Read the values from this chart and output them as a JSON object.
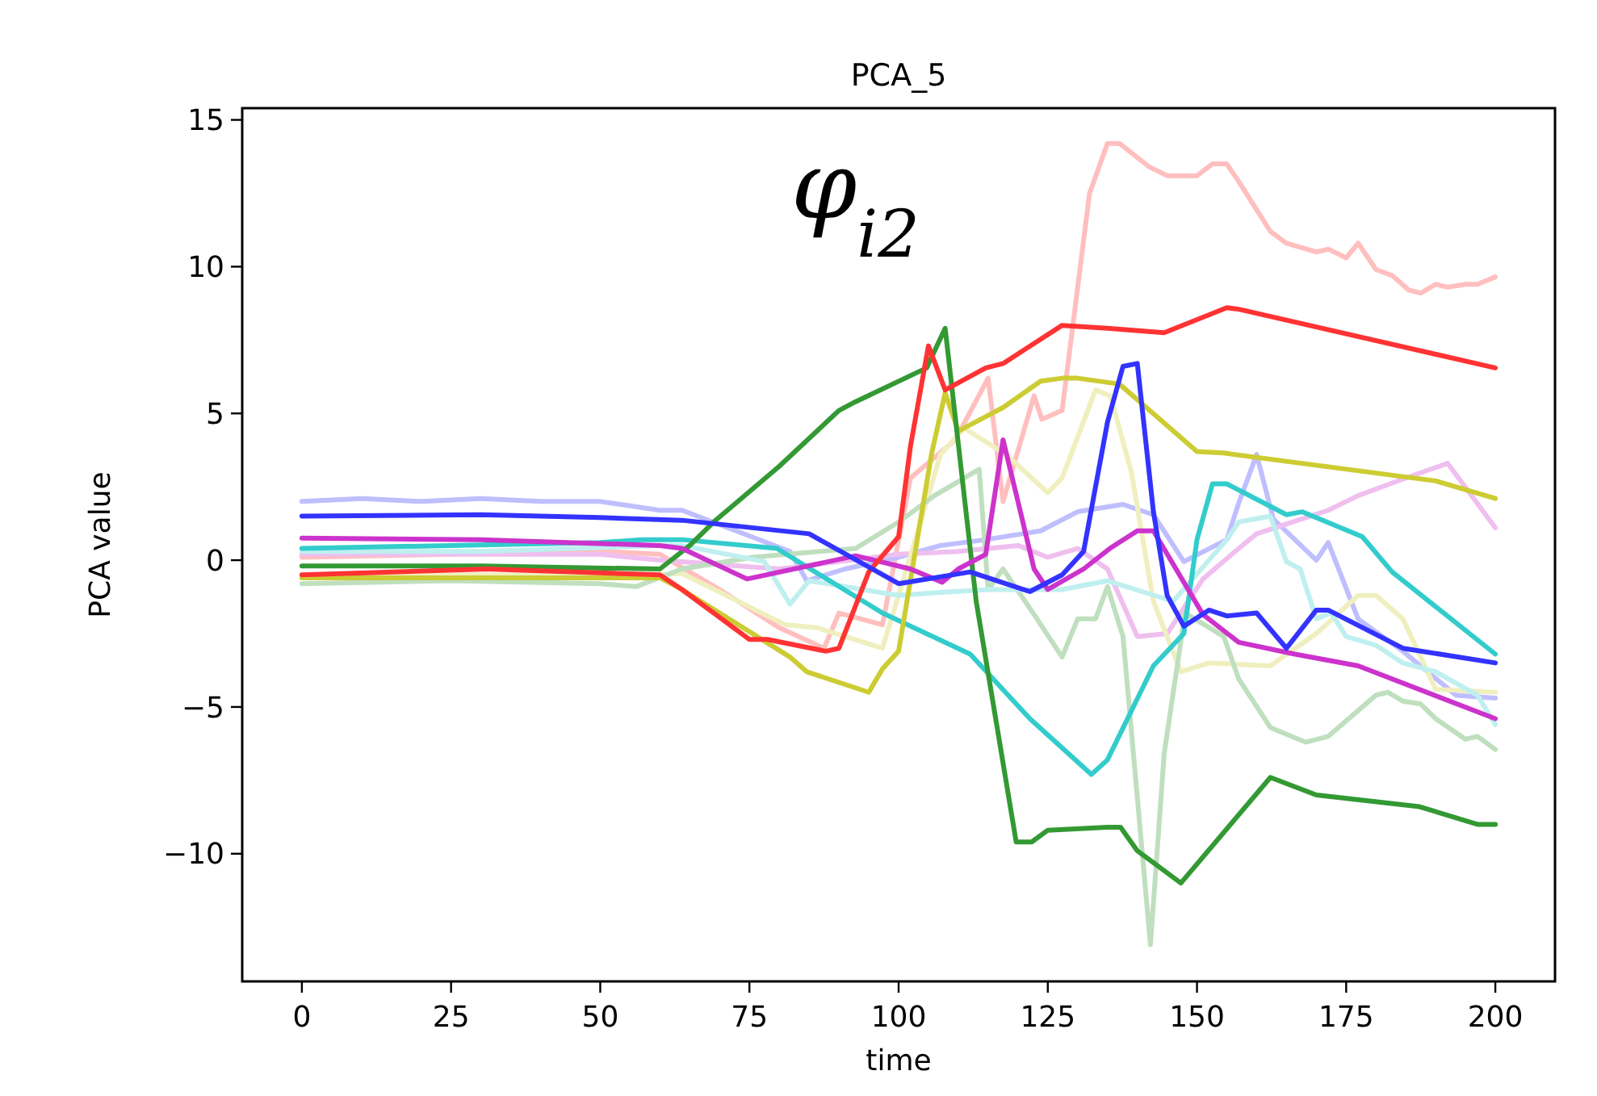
{
  "chart_data": {
    "type": "line",
    "title": "PCA_5",
    "xlabel": "time",
    "ylabel": "PCA value",
    "annotations": [
      "φ$_{i2}$"
    ],
    "xlim": [
      -10,
      210
    ],
    "xticks": [
      0,
      25,
      50,
      75,
      100,
      125,
      150,
      175,
      200
    ],
    "ylim": [
      -14.35,
      15.4
    ],
    "yticks": [
      {
        "value": -10,
        "label": "−10"
      },
      {
        "value": -5,
        "label": "−5"
      },
      0,
      5,
      10,
      15
    ],
    "series": [
      {
        "color": "#ffbfbf",
        "x": [
          0,
          25,
          50,
          60,
          70,
          80,
          87.5,
          90,
          97.3,
          102,
          109.5,
          115,
          117.5,
          122.7,
          124,
          127.4,
          132,
          135,
          137,
          142,
          145,
          150,
          152.6,
          155,
          157,
          162.3,
          165,
          170,
          172,
          175,
          177,
          180,
          182.7,
          185.5,
          187.5,
          190,
          192,
          195,
          197,
          200
        ],
        "values": [
          0.1,
          0.2,
          0.3,
          0.2,
          -1,
          -2.3,
          -3,
          -1.8,
          -2.2,
          2.8,
          4.1,
          6.2,
          2,
          5.6,
          4.8,
          5.1,
          12.5,
          14.2,
          14.2,
          13.4,
          13.1,
          13.1,
          13.5,
          13.5,
          12.9,
          11.2,
          10.8,
          10.5,
          10.6,
          10.3,
          10.8,
          9.9,
          9.7,
          9.2,
          9.1,
          9.4,
          9.3,
          9.4,
          9.4,
          9.65
        ]
      },
      {
        "color": "#bfbfff",
        "x": [
          0,
          10,
          20,
          30,
          40,
          50,
          60,
          63.7,
          81.8,
          84.6,
          91,
          100,
          107,
          114.6,
          123.8,
          130,
          137.6,
          142.7,
          147.8,
          155,
          157,
          160,
          162.8,
          170,
          172,
          177,
          184.5,
          193.4,
          200
        ],
        "values": [
          2,
          2.1,
          2,
          2.1,
          2,
          2,
          1.7,
          1.7,
          0.3,
          -0.7,
          -0.3,
          0.1,
          0.5,
          0.7,
          1,
          1.65,
          1.9,
          1.55,
          -0.05,
          0.7,
          1.95,
          3.6,
          1.4,
          0,
          0.6,
          -2,
          -3.1,
          -4.6,
          -4.7
        ]
      },
      {
        "color": "#efbfef",
        "x": [
          0,
          50,
          60,
          80,
          100,
          110,
          120,
          125,
          130,
          135,
          140,
          145,
          151,
          157,
          160,
          166,
          172,
          177,
          185,
          192,
          200
        ],
        "values": [
          0.2,
          0.2,
          0,
          -0.3,
          0.2,
          0.3,
          0.5,
          0.1,
          0.4,
          -0.3,
          -2.6,
          -2.5,
          -0.64,
          0.4,
          0.9,
          1.3,
          1.7,
          2.2,
          2.8,
          3.3,
          1.1
        ]
      },
      {
        "color": "#efefbf",
        "x": [
          0,
          30,
          60,
          63.7,
          81,
          86.3,
          97.3,
          103.7,
          107,
          111,
          118,
          125,
          127.4,
          133,
          135.5,
          139,
          142.7,
          147.3,
          152,
          162.3,
          170,
          177,
          180,
          184.5,
          190,
          200
        ],
        "values": [
          -0.5,
          -0.5,
          -0.5,
          -0.45,
          -2.2,
          -2.3,
          -3,
          1.3,
          3.6,
          4.5,
          3.6,
          2.3,
          2.8,
          5.8,
          5.6,
          3,
          -1.4,
          -3.8,
          -3.5,
          -3.6,
          -2.5,
          -1.2,
          -1.2,
          -2,
          -4.4,
          -4.5
        ]
      },
      {
        "color": "#bfdfbf",
        "x": [
          0,
          25,
          50,
          56,
          63.7,
          75.5,
          92.8,
          100,
          106,
          113.5,
          115,
          117.5,
          122.7,
          127.4,
          130,
          133,
          135,
          137.6,
          142.2,
          144.5,
          148,
          154.5,
          157,
          162.3,
          168.2,
          172,
          180,
          182,
          184.5,
          187.5,
          190,
          195,
          197,
          200
        ],
        "values": [
          -0.8,
          -0.7,
          -0.8,
          -0.9,
          -0.3,
          0.1,
          0.4,
          1.3,
          2.2,
          3.1,
          -1,
          -0.3,
          -1.85,
          -3.3,
          -2,
          -2,
          -0.9,
          -2.6,
          -13.1,
          -6.6,
          -1.8,
          -2.6,
          -4.05,
          -5.7,
          -6.2,
          -6,
          -4.6,
          -4.5,
          -4.8,
          -4.9,
          -5.4,
          -6.1,
          -6,
          -6.45
        ]
      },
      {
        "color": "#bfefef",
        "x": [
          0,
          30,
          60,
          63.7,
          77.5,
          81.8,
          85,
          100,
          107,
          115,
          127.4,
          135,
          146,
          155,
          157,
          162.3,
          165,
          167.3,
          170,
          172.5,
          175,
          180,
          184.5,
          190,
          197,
          200
        ],
        "values": [
          0.3,
          0.3,
          0.5,
          0.5,
          -0.05,
          -1.5,
          -0.7,
          -1.2,
          -1.1,
          -1,
          -1,
          -0.7,
          -1.4,
          0.7,
          1.3,
          1.5,
          -0.05,
          -0.3,
          -2,
          -1.8,
          -2.6,
          -2.9,
          -3.5,
          -3.8,
          -4.6,
          -5.6
        ]
      },
      {
        "color": "#33cccc",
        "x": [
          0,
          50,
          57,
          63.7,
          79.6,
          97.3,
          112,
          122,
          132.3,
          135,
          142.7,
          147.8,
          150,
          152.6,
          155,
          165,
          167.6,
          177.7,
          182.7,
          200
        ],
        "values": [
          0.4,
          0.6,
          0.7,
          0.7,
          0.4,
          -1.8,
          -3.2,
          -5.4,
          -7.3,
          -6.8,
          -3.6,
          -2.5,
          0.7,
          2.6,
          2.6,
          1.55,
          1.65,
          0.8,
          -0.4,
          -3.2
        ]
      },
      {
        "color": "#cccc33",
        "x": [
          0,
          30,
          60,
          63.7,
          81.8,
          84.6,
          95,
          97.3,
          100,
          105.5,
          107.8,
          110,
          117.5,
          123.8,
          127.4,
          130,
          137,
          150,
          154.5,
          190,
          200
        ],
        "values": [
          -0.6,
          -0.6,
          -0.6,
          -1,
          -3.3,
          -3.8,
          -4.5,
          -3.7,
          -3.1,
          3.6,
          5.7,
          4.4,
          5.2,
          6.1,
          6.2,
          6.2,
          6,
          3.7,
          3.65,
          2.7,
          2.1
        ]
      },
      {
        "color": "#339933",
        "x": [
          0,
          30,
          60,
          65,
          69,
          80,
          90,
          92.8,
          104.7,
          107.8,
          113,
          119.7,
          122.3,
          125,
          135,
          137.2,
          140,
          147.3,
          162.3,
          170,
          187.3,
          197,
          200
        ],
        "values": [
          -0.2,
          -0.2,
          -0.3,
          0.5,
          1.3,
          3.2,
          5.1,
          5.4,
          6.55,
          7.9,
          -1.4,
          -9.6,
          -9.6,
          -9.2,
          -9.1,
          -9.1,
          -9.9,
          -11,
          -7.4,
          -8,
          -8.4,
          -9,
          -9
        ]
      },
      {
        "color": "#cc33cc",
        "x": [
          0,
          30,
          60,
          63.7,
          74.6,
          92.8,
          102,
          107.3,
          110,
          114.6,
          117.5,
          120,
          122.7,
          125,
          131,
          135.4,
          140,
          142.7,
          151,
          157,
          166.4,
          177,
          200
        ],
        "values": [
          0.75,
          0.7,
          0.5,
          0.4,
          -0.64,
          0.15,
          -0.3,
          -0.75,
          -0.3,
          0.2,
          4.1,
          2,
          -0.3,
          -1,
          -0.3,
          0.4,
          1,
          1,
          -1.85,
          -2.8,
          -3.2,
          -3.6,
          -5.4
        ]
      },
      {
        "color": "#ff3333",
        "x": [
          0,
          31,
          60,
          63.7,
          75,
          78,
          87.8,
          90,
          95,
          100,
          102,
          105,
          107.8,
          114.6,
          117.5,
          127.4,
          135,
          144.5,
          155,
          157,
          200
        ],
        "values": [
          -0.5,
          -0.3,
          -0.5,
          -1,
          -2.7,
          -2.7,
          -3.1,
          -3,
          -0.4,
          0.8,
          3.9,
          7.3,
          5.8,
          6.55,
          6.7,
          8,
          7.9,
          7.75,
          8.6,
          8.55,
          6.55
        ]
      },
      {
        "color": "#3333ff",
        "x": [
          0,
          30,
          50,
          63.7,
          85,
          100,
          112,
          122,
          127.4,
          131,
          135,
          137.6,
          140,
          142.7,
          145,
          147.8,
          152,
          155,
          160,
          165,
          170,
          172,
          184.5,
          200
        ],
        "values": [
          1.5,
          1.55,
          1.45,
          1.36,
          0.9,
          -0.8,
          -0.4,
          -1.07,
          -0.5,
          0.3,
          4.7,
          6.6,
          6.7,
          1.65,
          -1.2,
          -2.25,
          -1.7,
          -1.9,
          -1.8,
          -3,
          -1.7,
          -1.7,
          -3,
          -3.5
        ]
      }
    ]
  }
}
